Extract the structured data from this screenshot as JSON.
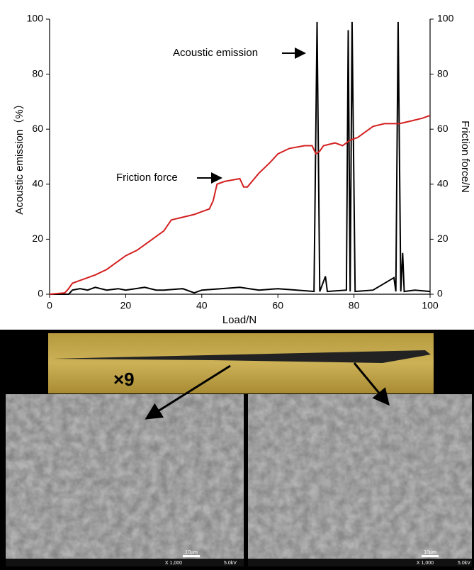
{
  "chart_data": {
    "type": "line",
    "xlabel": "Load/N",
    "ylabel": "Acoustic emission（%）",
    "y2label": "Friction force/N",
    "xlim": [
      0,
      100
    ],
    "xticks": [
      0,
      20,
      40,
      60,
      80,
      100
    ],
    "ylim": [
      0,
      100
    ],
    "yticks": [
      0,
      20,
      40,
      60,
      80,
      100
    ],
    "y2lim": [
      0,
      100
    ],
    "y2ticks": [
      0,
      20,
      40,
      60,
      80,
      100
    ],
    "annotations": [
      "Acoustic emission",
      "Friction force"
    ],
    "series": [
      {
        "name": "Acoustic emission",
        "color": "#000000",
        "x": [
          0,
          5,
          6,
          8,
          10,
          12,
          15,
          18,
          20,
          25,
          28,
          30,
          35,
          38,
          40,
          45,
          50,
          55,
          60,
          65,
          69.5,
          70.3,
          71,
          72.5,
          73,
          78,
          78.5,
          79,
          79.5,
          80.3,
          85,
          90.5,
          91,
          91.6,
          92.3,
          92.8,
          93.2,
          96,
          100
        ],
        "values": [
          0,
          0,
          1.5,
          2,
          1.5,
          2.5,
          1.5,
          2,
          1.5,
          2.5,
          1.5,
          1.5,
          2,
          0.5,
          1.5,
          2,
          2.5,
          1.5,
          2,
          1.5,
          1,
          99,
          1,
          6.5,
          1,
          1.5,
          96,
          1,
          99,
          1,
          1.5,
          6,
          1,
          99,
          1,
          15,
          1,
          1.5,
          1
        ]
      },
      {
        "name": "Friction force",
        "color": "#d42020",
        "axis": "y2",
        "x": [
          0,
          4,
          5,
          6,
          8,
          10,
          12,
          15,
          17,
          18,
          20,
          23,
          25,
          27,
          30,
          32,
          35,
          38,
          40,
          42,
          43,
          44,
          46,
          50,
          51,
          52,
          55,
          58,
          60,
          63,
          67,
          69,
          70,
          71,
          72,
          75,
          77,
          79,
          81,
          83,
          85,
          88,
          91,
          92,
          95,
          98,
          100
        ],
        "values": [
          0,
          0.5,
          2,
          4,
          5,
          6,
          7,
          9,
          11,
          12,
          14,
          16,
          18,
          20,
          23,
          27,
          28,
          29,
          30,
          31,
          34,
          40,
          41,
          42,
          39,
          39,
          44,
          48,
          51,
          53,
          54,
          54,
          51,
          52,
          54,
          55,
          54,
          56,
          57,
          59,
          61,
          62,
          62,
          62,
          63,
          64,
          65
        ]
      }
    ]
  },
  "micrographs": {
    "magnification": "×9",
    "sem": [
      {
        "scale": "10μm",
        "mag": "X 1,000",
        "voltage": "5.0kV"
      },
      {
        "scale": "10μm",
        "mag": "X 1,000",
        "voltage": "5.0kV"
      }
    ]
  }
}
